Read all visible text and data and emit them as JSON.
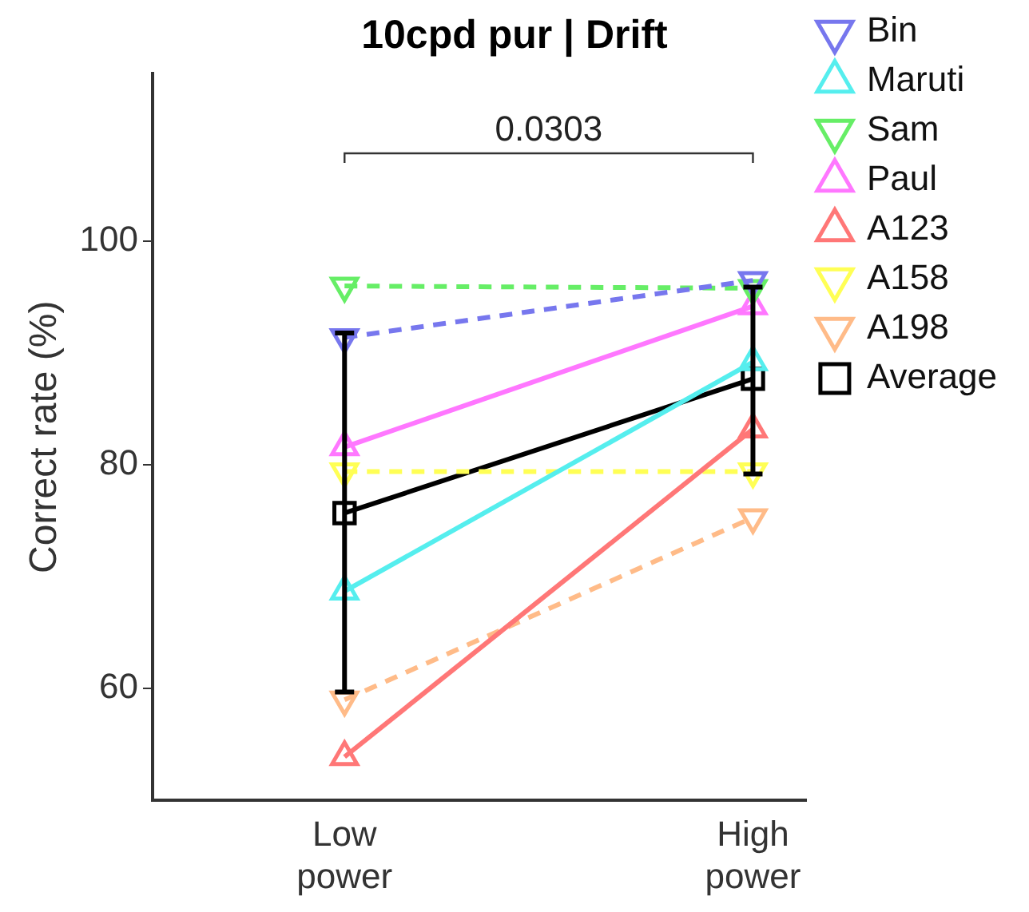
{
  "chart_data": {
    "type": "line",
    "title": "10cpd pur | Drift",
    "ylabel": "Correct rate (%)",
    "categories": [
      "Low power",
      "High power"
    ],
    "ylim": [
      50,
      115
    ],
    "yticks": [
      60,
      80,
      100
    ],
    "grid": false,
    "legend": "right",
    "annotations": [
      "0.0303"
    ],
    "series": [
      {
        "name": "Bin",
        "color": "#7777ee",
        "values": [
          91.4,
          96.5
        ],
        "marker": "triangle-down",
        "line_style": "dashed"
      },
      {
        "name": "Maruti",
        "color": "#55eeee",
        "values": [
          68.7,
          89.2
        ],
        "marker": "triangle",
        "line_style": "solid"
      },
      {
        "name": "Sam",
        "color": "#66ee66",
        "values": [
          96.0,
          95.8
        ],
        "marker": "triangle-down",
        "line_style": "dashed"
      },
      {
        "name": "Paul",
        "color": "#ff77ff",
        "values": [
          81.6,
          94.2
        ],
        "marker": "triangle",
        "line_style": "solid"
      },
      {
        "name": "A123",
        "color": "#ff7777",
        "values": [
          53.9,
          83.2
        ],
        "marker": "triangle",
        "line_style": "solid"
      },
      {
        "name": "A158",
        "color": "#ffff55",
        "values": [
          79.4,
          79.4
        ],
        "marker": "triangle-down",
        "line_style": "dashed"
      },
      {
        "name": "A198",
        "color": "#ffbb88",
        "values": [
          59.0,
          75.3
        ],
        "marker": "triangle-down",
        "line_style": "dashed"
      },
      {
        "name": "Average",
        "color": "#000000",
        "values": [
          75.7,
          87.7
        ],
        "errors": [
          [
            59.7,
            91.8
          ],
          [
            79.2,
            95.9
          ]
        ],
        "marker": "square",
        "line_style": "solid"
      }
    ]
  }
}
